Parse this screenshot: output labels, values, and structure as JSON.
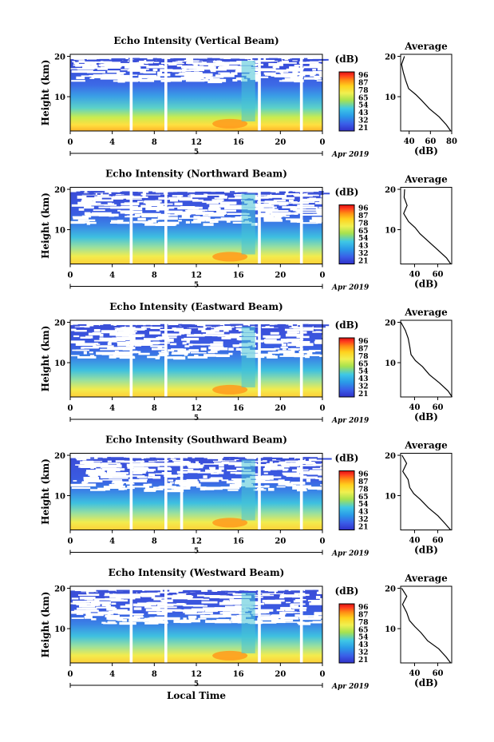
{
  "colorbar": {
    "unit_label": "(dB)",
    "tick_labels": [
      "96",
      "87",
      "78",
      "65",
      "54",
      "43",
      "32",
      "21"
    ],
    "colors": [
      "#d91010",
      "#ff3a1e",
      "#ff8c14",
      "#ffd21e",
      "#f0f050",
      "#a8e24e",
      "#3ec8e6",
      "#2a9ae8",
      "#3a5ee8",
      "#3030c8"
    ]
  },
  "shared": {
    "x_tick_labels": [
      "0",
      "4",
      "8",
      "12",
      "16",
      "20",
      "0"
    ],
    "y_tick_labels": [
      "20",
      "10"
    ],
    "ylabel": "Height (km)",
    "date_day": "5",
    "date_label": "Apr 2019",
    "xlabel": "Local Time",
    "avg_title": "Average",
    "avg_xlabel": "(dB)"
  },
  "chart_data": [
    {
      "type": "heatmap",
      "title": "Echo Intensity (Vertical Beam)",
      "x_range_hours": [
        0,
        24
      ],
      "y_range_km": [
        1.5,
        20.5
      ],
      "gaps_hours": [
        5.8,
        9.1,
        18.0,
        22.0
      ],
      "average_profile": {
        "type": "line",
        "xticks": [
          "40",
          "60",
          "80"
        ],
        "xlim": [
          32,
          80
        ],
        "height_km": [
          1.5,
          3,
          5,
          7,
          9,
          10.5,
          12,
          14,
          16,
          18,
          20
        ],
        "intensity_db": [
          80,
          75,
          68,
          60,
          52,
          46,
          40,
          37,
          36,
          35,
          34
        ]
      }
    },
    {
      "type": "heatmap",
      "title": "Echo Intensity (Northward Beam)",
      "x_range_hours": [
        0,
        24
      ],
      "y_range_km": [
        1.5,
        20.5
      ],
      "gaps_hours": [
        5.8,
        9.1,
        18.0,
        22.0
      ],
      "average_profile": {
        "type": "line",
        "xticks": [
          "40",
          "60"
        ],
        "xlim": [
          28,
          72
        ],
        "height_km": [
          1.5,
          3,
          5,
          7,
          9,
          10.5,
          12,
          14,
          16,
          18,
          20
        ],
        "intensity_db": [
          72,
          68,
          60,
          52,
          45,
          40,
          35,
          33,
          32,
          30,
          30
        ]
      }
    },
    {
      "type": "heatmap",
      "title": "Echo Intensity (Eastward Beam)",
      "x_range_hours": [
        0,
        24
      ],
      "y_range_km": [
        1.5,
        20.5
      ],
      "gaps_hours": [
        5.8,
        9.1,
        18.0,
        22.0
      ],
      "average_profile": {
        "type": "line",
        "xticks": [
          "40",
          "60"
        ],
        "xlim": [
          28,
          72
        ],
        "height_km": [
          1.5,
          3,
          5,
          7,
          9,
          10.5,
          12,
          14,
          16,
          18,
          20
        ],
        "intensity_db": [
          72,
          68,
          61,
          53,
          46,
          40,
          36,
          34,
          33,
          31,
          30
        ]
      }
    },
    {
      "type": "heatmap",
      "title": "Echo Intensity (Southward Beam)",
      "x_range_hours": [
        0,
        24
      ],
      "y_range_km": [
        1.5,
        20.5
      ],
      "gaps_hours": [
        5.8,
        9.1,
        10.6,
        18.0,
        22.0
      ],
      "average_profile": {
        "type": "line",
        "xticks": [
          "40",
          "60"
        ],
        "xlim": [
          28,
          72
        ],
        "height_km": [
          1.5,
          3,
          5,
          7,
          9,
          10.5,
          12,
          14,
          16,
          18,
          20
        ],
        "intensity_db": [
          72,
          67,
          60,
          52,
          45,
          39,
          35,
          33,
          32,
          31,
          30
        ]
      }
    },
    {
      "type": "heatmap",
      "title": "Echo Intensity (Westward Beam)",
      "x_range_hours": [
        0,
        24
      ],
      "y_range_km": [
        1.5,
        20.5
      ],
      "gaps_hours": [
        5.8,
        9.1,
        18.0,
        22.0
      ],
      "average_profile": {
        "type": "line",
        "xticks": [
          "40",
          "60"
        ],
        "xlim": [
          28,
          72
        ],
        "height_km": [
          1.5,
          3,
          5,
          7,
          9,
          10.5,
          12,
          14,
          16,
          18,
          20
        ],
        "intensity_db": [
          72,
          67,
          60,
          52,
          45,
          40,
          36,
          33,
          32,
          31,
          30
        ]
      }
    }
  ]
}
